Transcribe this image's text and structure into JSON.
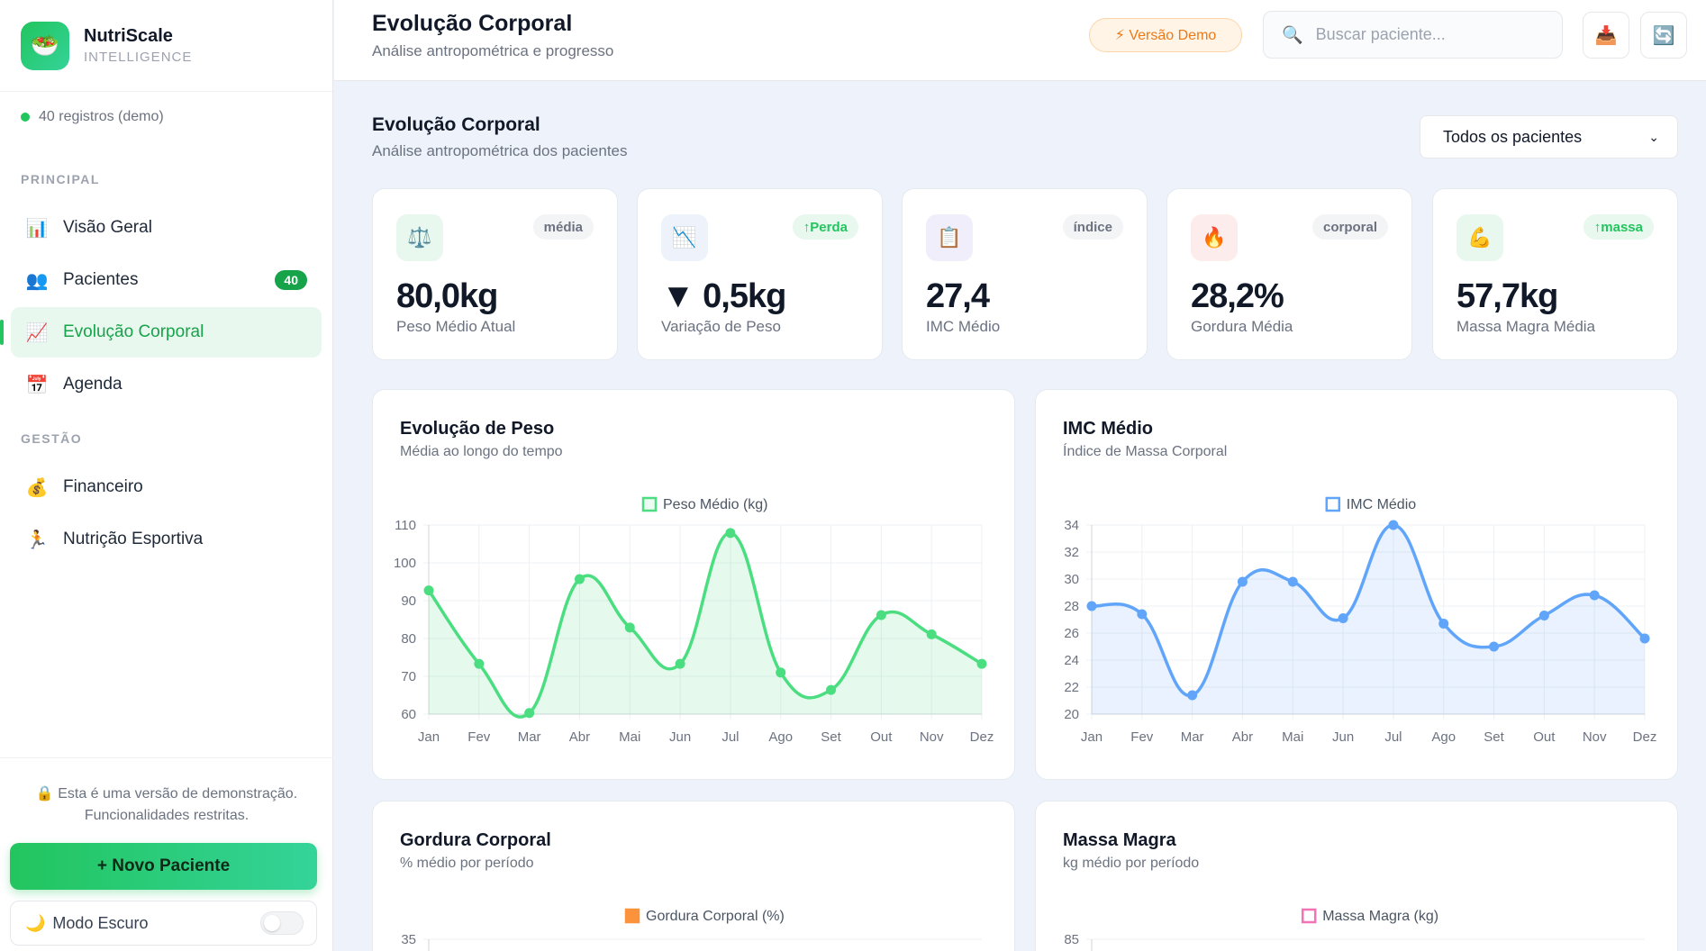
{
  "brand": {
    "name": "NutriScale",
    "sub": "INTELLIGENCE",
    "logo_icon": "salad-bowl-icon"
  },
  "records": "40 registros (demo)",
  "sidebar": {
    "section_principal": "PRINCIPAL",
    "section_gestao": "GESTÃO",
    "items": [
      {
        "label": "Visão Geral",
        "icon": "📊"
      },
      {
        "label": "Pacientes",
        "icon": "👥",
        "badge": "40"
      },
      {
        "label": "Evolução Corporal",
        "icon": "📈"
      },
      {
        "label": "Agenda",
        "icon": "📅"
      },
      {
        "label": "Financeiro",
        "icon": "💰"
      },
      {
        "label": "Nutrição Esportiva",
        "icon": "🏃"
      }
    ],
    "demo_note_line1": "🔒 Esta é uma versão de demonstração.",
    "demo_note_line2": "Funcionalidades restritas.",
    "new_patient": "+  Novo Paciente",
    "dark_mode": "Modo Escuro",
    "dark_mode_icon": "🌙"
  },
  "header": {
    "title": "Evolução Corporal",
    "subtitle": "Análise antropométrica e progresso",
    "demo_badge": "⚡ Versão Demo",
    "search_placeholder": "Buscar paciente...",
    "export_icon": "📥",
    "refresh_icon": "🔄"
  },
  "main": {
    "title": "Evolução Corporal",
    "subtitle": "Análise antropométrica dos pacientes",
    "patient_select": "Todos os pacientes"
  },
  "stats": [
    {
      "icon": "⚖️",
      "tag": "média",
      "value": "80,0kg",
      "label": "Peso Médio Atual",
      "bg": "#e8f8ee"
    },
    {
      "icon": "📉",
      "tag": "↑Perda",
      "value": "▼ 0,5kg",
      "label": "Variação de Peso",
      "bg": "#eef2fb"
    },
    {
      "icon": "📋",
      "tag": "índice",
      "value": "27,4",
      "label": "IMC Médio",
      "bg": "#f1eefb"
    },
    {
      "icon": "🔥",
      "tag": "corporal",
      "value": "28,2%",
      "label": "Gordura Média",
      "bg": "#fdecec"
    },
    {
      "icon": "💪",
      "tag": "↑massa",
      "value": "57,7kg",
      "label": "Massa Magra Média",
      "bg": "#e8f8ee"
    }
  ],
  "charts": {
    "peso": {
      "title": "Evolução de Peso",
      "subtitle": "Média ao longo do tempo"
    },
    "imc": {
      "title": "IMC Médio",
      "subtitle": "Índice de Massa Corporal"
    },
    "gordura": {
      "title": "Gordura Corporal",
      "subtitle": "% médio por período"
    },
    "massa": {
      "title": "Massa Magra",
      "subtitle": "kg médio por período"
    }
  },
  "chart_data": [
    {
      "type": "line",
      "x": [
        "Jan",
        "Fev",
        "Mar",
        "Abr",
        "Mai",
        "Jun",
        "Jul",
        "Ago",
        "Set",
        "Out",
        "Nov",
        "Dez"
      ],
      "series": [
        {
          "name": "Peso Médio (kg)",
          "values": [
            92.7,
            73.3,
            60.3,
            95.7,
            82.9,
            73.3,
            107.9,
            71.0,
            66.4,
            86.2,
            81.1,
            73.3
          ],
          "color": "#4ade80"
        }
      ],
      "ylim": [
        60,
        110
      ],
      "yticks": [
        60,
        70,
        80,
        90,
        100,
        110
      ],
      "grid": true,
      "legend": "top-center"
    },
    {
      "type": "line",
      "x": [
        "Jan",
        "Fev",
        "Mar",
        "Abr",
        "Mai",
        "Jun",
        "Jul",
        "Ago",
        "Set",
        "Out",
        "Nov",
        "Dez"
      ],
      "series": [
        {
          "name": "IMC Médio",
          "values": [
            28.0,
            27.4,
            21.4,
            29.8,
            29.8,
            27.1,
            34.0,
            26.7,
            25.0,
            27.3,
            28.8,
            25.6
          ],
          "color": "#60a5fa"
        }
      ],
      "ylim": [
        20,
        34
      ],
      "yticks": [
        20,
        22,
        24,
        26,
        28,
        30,
        32,
        34
      ],
      "grid": true,
      "legend": "top-center"
    },
    {
      "type": "bar",
      "series": [
        {
          "name": "Gordura Corporal (%)",
          "color": "#fb923c"
        }
      ],
      "yticks": [
        35
      ],
      "legend": "top-center"
    },
    {
      "type": "line",
      "series": [
        {
          "name": "Massa Magra (kg)",
          "color": "#f472b6"
        }
      ],
      "yticks": [
        85
      ],
      "legend": "top-center"
    }
  ]
}
